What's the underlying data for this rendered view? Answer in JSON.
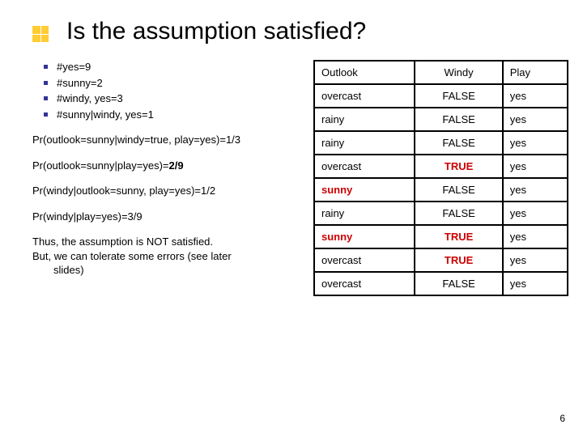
{
  "title": "Is the assumption satisfied?",
  "bullets": [
    "#yes=9",
    "#sunny=2",
    "#windy, yes=3",
    "#sunny|windy, yes=1"
  ],
  "probs": {
    "p1": "Pr(outlook=sunny|windy=true, play=yes)=1/3",
    "p2_prefix": "Pr(outlook=sunny|play=yes)=",
    "p2_frac": "2/9",
    "p3": "Pr(windy|outlook=sunny, play=yes)=1/2",
    "p4": "Pr(windy|play=yes)=3/9"
  },
  "conclusion": {
    "l1": "Thus, the assumption is NOT satisfied.",
    "l2": "But, we can tolerate some errors (see later",
    "l3": "slides)"
  },
  "table": {
    "headers": [
      "Outlook",
      "Windy",
      "Play"
    ],
    "rows": [
      {
        "c": [
          "overcast",
          "FALSE",
          "yes"
        ],
        "hi": [
          false,
          false,
          false
        ]
      },
      {
        "c": [
          "rainy",
          "FALSE",
          "yes"
        ],
        "hi": [
          false,
          false,
          false
        ]
      },
      {
        "c": [
          "rainy",
          "FALSE",
          "yes"
        ],
        "hi": [
          false,
          false,
          false
        ]
      },
      {
        "c": [
          "overcast",
          "TRUE",
          "yes"
        ],
        "hi": [
          false,
          true,
          false
        ]
      },
      {
        "c": [
          "sunny",
          "FALSE",
          "yes"
        ],
        "hi": [
          true,
          false,
          false
        ]
      },
      {
        "c": [
          "rainy",
          "FALSE",
          "yes"
        ],
        "hi": [
          false,
          false,
          false
        ]
      },
      {
        "c": [
          "sunny",
          "TRUE",
          "yes"
        ],
        "hi": [
          true,
          true,
          false
        ]
      },
      {
        "c": [
          "overcast",
          "TRUE",
          "yes"
        ],
        "hi": [
          false,
          true,
          false
        ]
      },
      {
        "c": [
          "overcast",
          "FALSE",
          "yes"
        ],
        "hi": [
          false,
          false,
          false
        ]
      }
    ]
  },
  "page_number": "6",
  "colors": {
    "accent_square": "#ffcc33",
    "bullet": "#333399",
    "highlight": "#cc0000",
    "border": "#000000",
    "bg": "#ffffff"
  },
  "typography": {
    "title_fontsize": 30,
    "body_fontsize": 13,
    "font_family": "Verdana"
  }
}
